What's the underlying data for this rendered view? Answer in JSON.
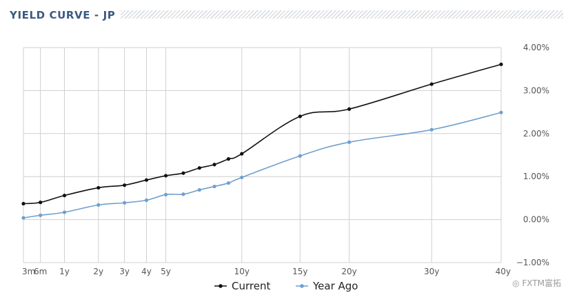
{
  "header": {
    "title": "YIELD CURVE - JP"
  },
  "watermark": "FXTM富拓",
  "colors": {
    "current": "#111111",
    "year_ago": "#6f9fcf",
    "grid": "#cfcfcf",
    "title": "#3a5a80"
  },
  "chart_data": {
    "type": "line",
    "title": "YIELD CURVE - JP",
    "xlabel": "",
    "ylabel": "",
    "categories": [
      "3m",
      "6m",
      "1y",
      "2y",
      "3y",
      "4y",
      "5y",
      "10y",
      "15y",
      "20y",
      "30y",
      "40y"
    ],
    "ylim": [
      -1.0,
      4.0
    ],
    "yticks": [
      "4.00%",
      "3.00%",
      "2.00%",
      "1.00%",
      "0.00%",
      "−1.00%"
    ],
    "ytick_values": [
      4,
      3,
      2,
      1,
      0,
      -1
    ],
    "grid": true,
    "legend_position": "bottom-center",
    "series": [
      {
        "name": "Current",
        "color": "#111111",
        "points": [
          {
            "x": "3m",
            "y": 0.37
          },
          {
            "x": "6m",
            "y": 0.4
          },
          {
            "x": "1y",
            "y": 0.56
          },
          {
            "x": "2y",
            "y": 0.74
          },
          {
            "x": "3y",
            "y": 0.8
          },
          {
            "x": "4y",
            "y": 0.92
          },
          {
            "x": "5y",
            "y": 1.02
          },
          {
            "x": "6y",
            "y": 1.08
          },
          {
            "x": "7y",
            "y": 1.2
          },
          {
            "x": "8y",
            "y": 1.28
          },
          {
            "x": "9y",
            "y": 1.41
          },
          {
            "x": "10y",
            "y": 1.53
          },
          {
            "x": "15y",
            "y": 2.4
          },
          {
            "x": "20y",
            "y": 2.57
          },
          {
            "x": "30y",
            "y": 3.15
          },
          {
            "x": "40y",
            "y": 3.61
          }
        ]
      },
      {
        "name": "Year Ago",
        "color": "#6f9fcf",
        "points": [
          {
            "x": "3m",
            "y": 0.04
          },
          {
            "x": "6m",
            "y": 0.1
          },
          {
            "x": "1y",
            "y": 0.17
          },
          {
            "x": "2y",
            "y": 0.34
          },
          {
            "x": "3y",
            "y": 0.39
          },
          {
            "x": "4y",
            "y": 0.45
          },
          {
            "x": "5y",
            "y": 0.58
          },
          {
            "x": "6y",
            "y": 0.59
          },
          {
            "x": "7y",
            "y": 0.69
          },
          {
            "x": "8y",
            "y": 0.77
          },
          {
            "x": "9y",
            "y": 0.85
          },
          {
            "x": "10y",
            "y": 0.98
          },
          {
            "x": "15y",
            "y": 1.48
          },
          {
            "x": "20y",
            "y": 1.8
          },
          {
            "x": "30y",
            "y": 2.09
          },
          {
            "x": "40y",
            "y": 2.49
          }
        ]
      }
    ]
  }
}
